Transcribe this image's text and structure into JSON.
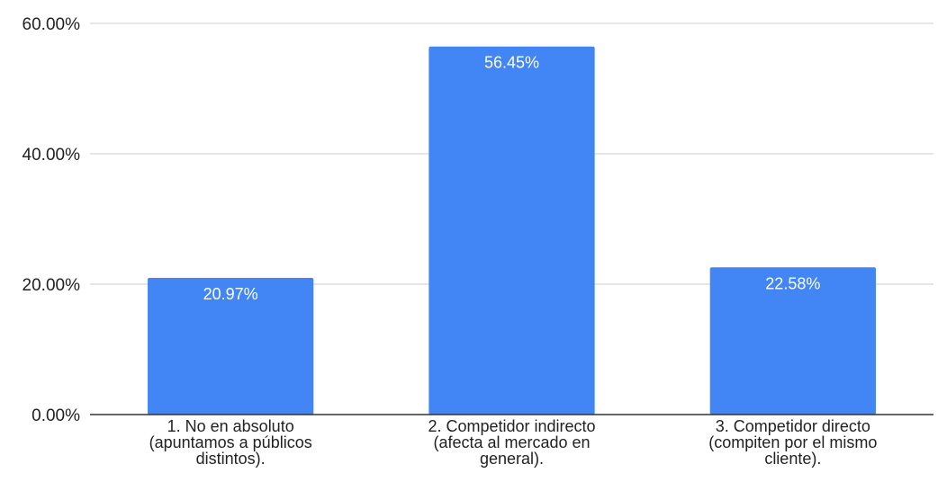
{
  "chart_data": {
    "type": "bar",
    "categories": [
      [
        "1. No en absoluto",
        "(apuntamos a públicos",
        "distintos)."
      ],
      [
        "2. Competidor indirecto",
        "(afecta al mercado en",
        "general)."
      ],
      [
        "3. Competidor directo",
        "(compiten por el mismo",
        "cliente)."
      ]
    ],
    "values": [
      20.97,
      56.45,
      22.58
    ],
    "data_labels": [
      "20.97%",
      "56.45%",
      "22.58%"
    ],
    "yticks": [
      0,
      20,
      40,
      60
    ],
    "ytick_labels": [
      "0.00%",
      "20.00%",
      "40.00%",
      "60.00%"
    ],
    "ylim": [
      0,
      60
    ],
    "title": "",
    "xlabel": "",
    "ylabel": "",
    "grid": true,
    "legend": "none",
    "colors": {
      "bar": "#4285f4",
      "grid": "#cccccc",
      "axis": "#333333",
      "data_label": "#ffffff",
      "tick_text": "#222222"
    }
  }
}
